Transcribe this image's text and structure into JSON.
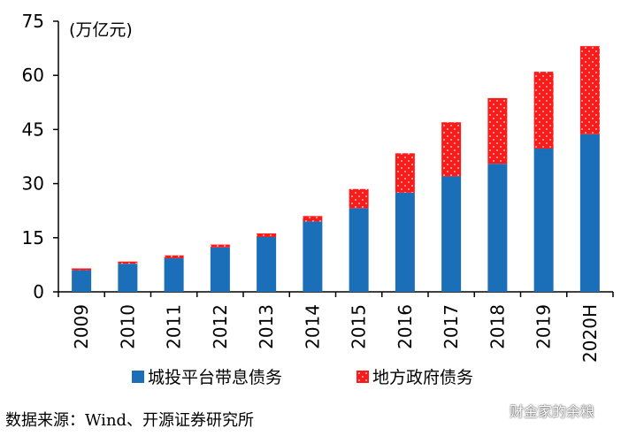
{
  "chart_data": {
    "type": "bar",
    "stacked": true,
    "unit_label": "(万亿元)",
    "categories": [
      "2009",
      "2010",
      "2011",
      "2012",
      "2013",
      "2014",
      "2015",
      "2016",
      "2017",
      "2018",
      "2019",
      "2020H"
    ],
    "series": [
      {
        "name": "城投平台带息债务",
        "color": "#1a6fb8",
        "values": [
          6.0,
          7.8,
          9.3,
          12.3,
          15.2,
          19.5,
          23.2,
          27.5,
          32.0,
          35.5,
          39.7,
          43.7
        ]
      },
      {
        "name": "地方政府债务",
        "color": "#ff1a1a",
        "pattern": "dotted",
        "values": [
          0.5,
          0.6,
          0.8,
          0.8,
          1.0,
          1.5,
          5.3,
          10.9,
          15.0,
          18.2,
          21.3,
          24.4
        ]
      }
    ],
    "ylim": [
      0,
      75
    ],
    "yticks": [
      0,
      15,
      30,
      45,
      60,
      75
    ],
    "grid": false,
    "legend_position": "bottom"
  },
  "source_text": "数据来源：Wind、开源证券研究所",
  "watermark_text": "财金家的余粮"
}
